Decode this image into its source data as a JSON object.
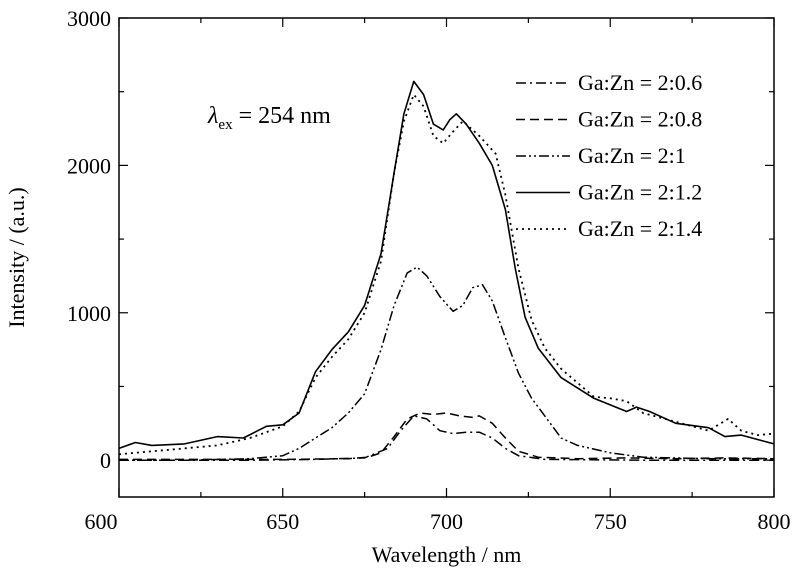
{
  "chart_data": {
    "type": "line",
    "title": "",
    "xlabel": "Wavelength / nm",
    "ylabel": "Intensity / (a.u.)",
    "xlim": [
      600,
      800
    ],
    "ylim": [
      -250,
      3000
    ],
    "xticks": [
      600,
      650,
      700,
      750,
      800
    ],
    "yticks": [
      0,
      1000,
      2000,
      3000
    ],
    "grid": false,
    "legend_position": "top-right",
    "annotation": {
      "symbol": "λ",
      "subscript": "ex",
      "rest": " = 254 nm"
    },
    "series": [
      {
        "name": "Ga:Zn = 2:0.6",
        "style": "dashdot",
        "points": [
          [
            600,
            0
          ],
          [
            640,
            0
          ],
          [
            660,
            5
          ],
          [
            675,
            15
          ],
          [
            682,
            80
          ],
          [
            686,
            200
          ],
          [
            690,
            300
          ],
          [
            694,
            280
          ],
          [
            698,
            200
          ],
          [
            702,
            180
          ],
          [
            706,
            190
          ],
          [
            710,
            190
          ],
          [
            714,
            150
          ],
          [
            718,
            80
          ],
          [
            722,
            30
          ],
          [
            730,
            5
          ],
          [
            760,
            0
          ],
          [
            800,
            0
          ]
        ]
      },
      {
        "name": "Ga:Zn = 2:0.8",
        "style": "dashed",
        "points": [
          [
            600,
            5
          ],
          [
            620,
            5
          ],
          [
            650,
            5
          ],
          [
            670,
            10
          ],
          [
            676,
            20
          ],
          [
            680,
            50
          ],
          [
            684,
            160
          ],
          [
            688,
            280
          ],
          [
            692,
            320
          ],
          [
            696,
            310
          ],
          [
            700,
            320
          ],
          [
            704,
            300
          ],
          [
            708,
            290
          ],
          [
            710,
            300
          ],
          [
            714,
            250
          ],
          [
            718,
            150
          ],
          [
            722,
            60
          ],
          [
            728,
            20
          ],
          [
            740,
            10
          ],
          [
            755,
            15
          ],
          [
            770,
            10
          ],
          [
            785,
            15
          ],
          [
            800,
            10
          ]
        ]
      },
      {
        "name": "Ga:Zn = 2:1",
        "style": "dashdotdot",
        "points": [
          [
            600,
            0
          ],
          [
            620,
            0
          ],
          [
            640,
            10
          ],
          [
            650,
            30
          ],
          [
            655,
            80
          ],
          [
            660,
            150
          ],
          [
            665,
            220
          ],
          [
            670,
            320
          ],
          [
            675,
            450
          ],
          [
            680,
            750
          ],
          [
            684,
            1050
          ],
          [
            688,
            1270
          ],
          [
            691,
            1310
          ],
          [
            694,
            1250
          ],
          [
            698,
            1110
          ],
          [
            702,
            1010
          ],
          [
            705,
            1050
          ],
          [
            708,
            1170
          ],
          [
            711,
            1190
          ],
          [
            714,
            1080
          ],
          [
            718,
            830
          ],
          [
            722,
            590
          ],
          [
            726,
            420
          ],
          [
            730,
            300
          ],
          [
            735,
            150
          ],
          [
            740,
            100
          ],
          [
            750,
            50
          ],
          [
            760,
            20
          ],
          [
            780,
            10
          ],
          [
            800,
            10
          ]
        ]
      },
      {
        "name": "Ga:Zn = 2:1.2",
        "style": "solid",
        "points": [
          [
            600,
            80
          ],
          [
            605,
            120
          ],
          [
            610,
            100
          ],
          [
            620,
            110
          ],
          [
            630,
            160
          ],
          [
            638,
            150
          ],
          [
            645,
            230
          ],
          [
            650,
            240
          ],
          [
            655,
            320
          ],
          [
            660,
            600
          ],
          [
            665,
            750
          ],
          [
            670,
            870
          ],
          [
            675,
            1050
          ],
          [
            680,
            1400
          ],
          [
            684,
            1950
          ],
          [
            687,
            2350
          ],
          [
            690,
            2570
          ],
          [
            693,
            2480
          ],
          [
            696,
            2280
          ],
          [
            699,
            2240
          ],
          [
            701,
            2310
          ],
          [
            703,
            2350
          ],
          [
            706,
            2280
          ],
          [
            710,
            2150
          ],
          [
            714,
            2000
          ],
          [
            718,
            1700
          ],
          [
            721,
            1300
          ],
          [
            724,
            970
          ],
          [
            728,
            760
          ],
          [
            735,
            560
          ],
          [
            745,
            420
          ],
          [
            755,
            330
          ],
          [
            758,
            360
          ],
          [
            762,
            330
          ],
          [
            770,
            250
          ],
          [
            780,
            220
          ],
          [
            785,
            160
          ],
          [
            790,
            170
          ],
          [
            795,
            140
          ],
          [
            800,
            110
          ]
        ]
      },
      {
        "name": "Ga:Zn = 2:1.4",
        "style": "dotted",
        "points": [
          [
            600,
            40
          ],
          [
            610,
            60
          ],
          [
            620,
            80
          ],
          [
            630,
            100
          ],
          [
            640,
            150
          ],
          [
            650,
            230
          ],
          [
            655,
            330
          ],
          [
            660,
            560
          ],
          [
            665,
            700
          ],
          [
            670,
            820
          ],
          [
            675,
            1000
          ],
          [
            680,
            1350
          ],
          [
            684,
            1950
          ],
          [
            687,
            2300
          ],
          [
            690,
            2480
          ],
          [
            693,
            2400
          ],
          [
            696,
            2200
          ],
          [
            699,
            2150
          ],
          [
            702,
            2230
          ],
          [
            705,
            2300
          ],
          [
            710,
            2200
          ],
          [
            715,
            2080
          ],
          [
            718,
            1800
          ],
          [
            722,
            1300
          ],
          [
            726,
            950
          ],
          [
            730,
            760
          ],
          [
            735,
            620
          ],
          [
            745,
            430
          ],
          [
            750,
            420
          ],
          [
            755,
            400
          ],
          [
            760,
            320
          ],
          [
            770,
            260
          ],
          [
            780,
            200
          ],
          [
            786,
            280
          ],
          [
            790,
            200
          ],
          [
            795,
            170
          ],
          [
            800,
            180
          ]
        ]
      }
    ]
  }
}
